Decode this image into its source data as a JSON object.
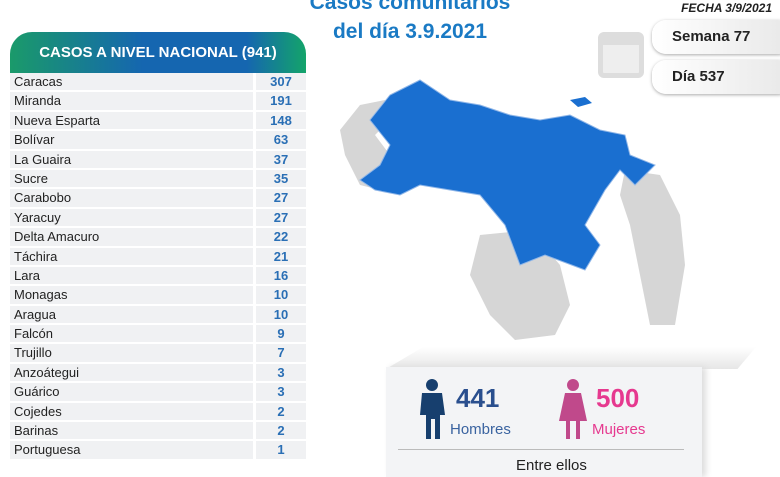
{
  "header": {
    "title_line1": "Casos comunitarios",
    "title_line2": "del día 3.9.2021",
    "fecha": "FECHA 3/9/2021",
    "semana": "Semana 77",
    "dia": "Día 537"
  },
  "table": {
    "title": "CASOS A NIVEL NACIONAL (941)",
    "rows": [
      {
        "name": "Caracas",
        "value": "307"
      },
      {
        "name": "Miranda",
        "value": "191"
      },
      {
        "name": "Nueva Esparta",
        "value": "148"
      },
      {
        "name": "Bolívar",
        "value": "63"
      },
      {
        "name": "La Guaira",
        "value": "37"
      },
      {
        "name": "Sucre",
        "value": "35"
      },
      {
        "name": "Carabobo",
        "value": "27"
      },
      {
        "name": "Yaracuy",
        "value": "27"
      },
      {
        "name": "Delta Amacuro",
        "value": "22"
      },
      {
        "name": "Táchira",
        "value": "21"
      },
      {
        "name": "Lara",
        "value": "16"
      },
      {
        "name": "Monagas",
        "value": "10"
      },
      {
        "name": "Aragua",
        "value": "10"
      },
      {
        "name": "Falcón",
        "value": "9"
      },
      {
        "name": "Trujillo",
        "value": "7"
      },
      {
        "name": "Anzoátegui",
        "value": "3"
      },
      {
        "name": "Guárico",
        "value": "3"
      },
      {
        "name": "Cojedes",
        "value": "2"
      },
      {
        "name": "Barinas",
        "value": "2"
      },
      {
        "name": "Portuguesa",
        "value": "1"
      }
    ]
  },
  "gender": {
    "men_count": "441",
    "men_label": "Hombres",
    "women_count": "500",
    "women_label": "Mujeres",
    "entre": "Entre ellos"
  },
  "colors": {
    "blue": "#1a6fd0",
    "men": "#173f6e",
    "women": "#e6398f"
  }
}
